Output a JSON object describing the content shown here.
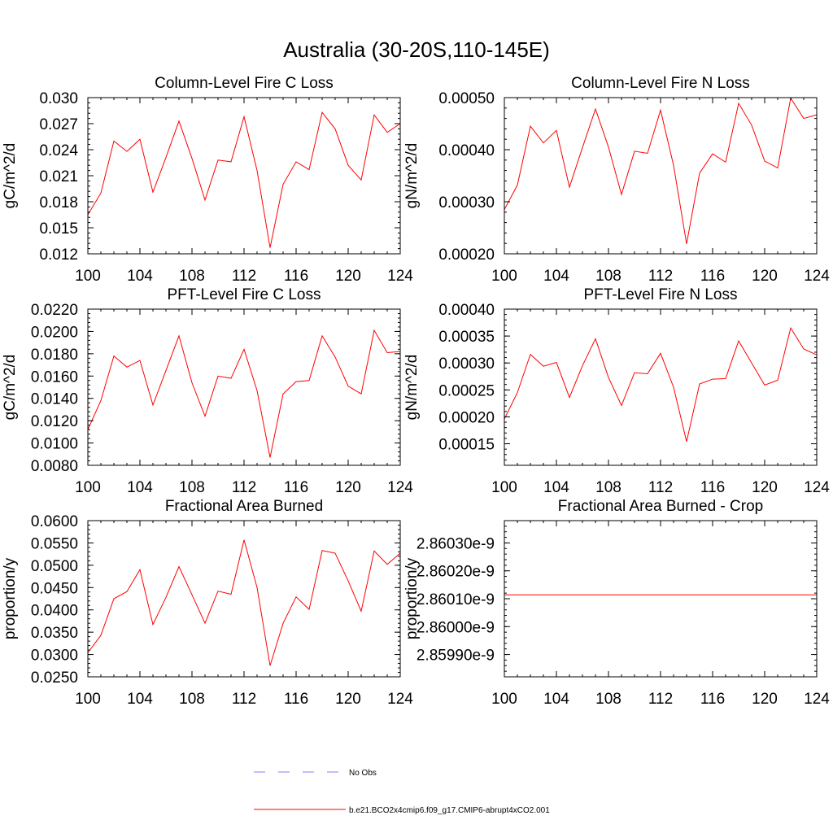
{
  "title": "Australia (30-20S,110-145E)",
  "legend": [
    {
      "label": "No Obs",
      "color": "#8080ff",
      "dash": true
    },
    {
      "label": "b.e21.BCO2x4cmip6.f09_g17.CMIP6-abrupt4xCO2.001",
      "color": "#ff0000",
      "dash": false
    }
  ],
  "chart_data": [
    {
      "type": "line",
      "title": "Column-Level Fire C Loss",
      "ylabel": "gC/m^2/d",
      "xlim": [
        100,
        124
      ],
      "ylim": [
        0.012,
        0.03
      ],
      "x_ticks": [
        "100",
        "104",
        "108",
        "112",
        "116",
        "120",
        "124"
      ],
      "y_ticks": [
        "0.012",
        "0.015",
        "0.018",
        "0.021",
        "0.024",
        "0.027",
        "0.030"
      ],
      "series": [
        {
          "color": "#ff0000",
          "x": [
            100,
            101,
            102,
            103,
            104,
            105,
            106,
            107,
            108,
            109,
            110,
            111,
            112,
            113,
            114,
            115,
            116,
            117,
            118,
            119,
            120,
            121,
            122,
            123,
            124
          ],
          "values": [
            0.0165,
            0.019,
            0.025,
            0.0238,
            0.0252,
            0.0191,
            0.0231,
            0.0273,
            0.023,
            0.0182,
            0.0228,
            0.0226,
            0.0278,
            0.0216,
            0.0127,
            0.02,
            0.0226,
            0.0217,
            0.0283,
            0.0264,
            0.0222,
            0.0205,
            0.028,
            0.026,
            0.027
          ]
        }
      ]
    },
    {
      "type": "line",
      "title": "Column-Level Fire N Loss",
      "ylabel": "gN/m^2/d",
      "xlim": [
        100,
        124
      ],
      "ylim": [
        0.0002,
        0.0005
      ],
      "x_ticks": [
        "100",
        "104",
        "108",
        "112",
        "116",
        "120",
        "124"
      ],
      "y_ticks": [
        "0.00020",
        "0.00030",
        "0.00040",
        "0.00050"
      ],
      "series": [
        {
          "color": "#ff0000",
          "x": [
            100,
            101,
            102,
            103,
            104,
            105,
            106,
            107,
            108,
            109,
            110,
            111,
            112,
            113,
            114,
            115,
            116,
            117,
            118,
            119,
            120,
            121,
            122,
            123,
            124
          ],
          "values": [
            0.000285,
            0.000332,
            0.000445,
            0.000413,
            0.000437,
            0.000328,
            0.000404,
            0.000478,
            0.000405,
            0.000314,
            0.000397,
            0.000393,
            0.000476,
            0.00037,
            0.000219,
            0.000355,
            0.000392,
            0.000376,
            0.000489,
            0.000447,
            0.000378,
            0.000365,
            0.000499,
            0.00046,
            0.000467
          ]
        }
      ]
    },
    {
      "type": "line",
      "title": "PFT-Level Fire C Loss",
      "ylabel": "gC/m^2/d",
      "xlim": [
        100,
        124
      ],
      "ylim": [
        0.008,
        0.022
      ],
      "x_ticks": [
        "100",
        "104",
        "108",
        "112",
        "116",
        "120",
        "124"
      ],
      "y_ticks": [
        "0.0080",
        "0.0100",
        "0.0120",
        "0.0140",
        "0.0160",
        "0.0180",
        "0.0200",
        "0.0220"
      ],
      "series": [
        {
          "color": "#ff0000",
          "x": [
            100,
            101,
            102,
            103,
            104,
            105,
            106,
            107,
            108,
            109,
            110,
            111,
            112,
            113,
            114,
            115,
            116,
            117,
            118,
            119,
            120,
            121,
            122,
            123,
            124
          ],
          "values": [
            0.0112,
            0.0138,
            0.0178,
            0.0168,
            0.0174,
            0.0134,
            0.0165,
            0.0196,
            0.0154,
            0.0124,
            0.016,
            0.0158,
            0.0184,
            0.0147,
            0.0087,
            0.0144,
            0.0155,
            0.0156,
            0.0196,
            0.0177,
            0.0151,
            0.0144,
            0.0201,
            0.0181,
            0.0182
          ]
        }
      ]
    },
    {
      "type": "line",
      "title": "PFT-Level Fire N Loss",
      "ylabel": "gN/m^2/d",
      "xlim": [
        100,
        124
      ],
      "ylim": [
        0.00011,
        0.0004
      ],
      "x_ticks": [
        "100",
        "104",
        "108",
        "112",
        "116",
        "120",
        "124"
      ],
      "y_ticks": [
        "0.00015",
        "0.00020",
        "0.00025",
        "0.00030",
        "0.00035",
        "0.00040"
      ],
      "series": [
        {
          "color": "#ff0000",
          "x": [
            100,
            101,
            102,
            103,
            104,
            105,
            106,
            107,
            108,
            109,
            110,
            111,
            112,
            113,
            114,
            115,
            116,
            117,
            118,
            119,
            120,
            121,
            122,
            123,
            124
          ],
          "values": [
            0.000196,
            0.000245,
            0.000316,
            0.000294,
            0.000301,
            0.000236,
            0.000295,
            0.000345,
            0.000273,
            0.000221,
            0.000282,
            0.00028,
            0.000318,
            0.000255,
            0.000154,
            0.000261,
            0.00027,
            0.000271,
            0.000341,
            0.0003,
            0.000259,
            0.000268,
            0.000365,
            0.000326,
            0.000315
          ]
        }
      ]
    },
    {
      "type": "line",
      "title": "Fractional Area Burned",
      "ylabel": "proportion/y",
      "xlim": [
        100,
        124
      ],
      "ylim": [
        0.025,
        0.06
      ],
      "x_ticks": [
        "100",
        "104",
        "108",
        "112",
        "116",
        "120",
        "124"
      ],
      "y_ticks": [
        "0.0250",
        "0.0300",
        "0.0350",
        "0.0400",
        "0.0450",
        "0.0500",
        "0.0550",
        "0.0600"
      ],
      "series": [
        {
          "color": "#ff0000",
          "x": [
            100,
            101,
            102,
            103,
            104,
            105,
            106,
            107,
            108,
            109,
            110,
            111,
            112,
            113,
            114,
            115,
            116,
            117,
            118,
            119,
            120,
            121,
            122,
            123,
            124
          ],
          "values": [
            0.0304,
            0.0343,
            0.0425,
            0.0441,
            0.049,
            0.0367,
            0.0428,
            0.0497,
            0.0434,
            0.037,
            0.0442,
            0.0435,
            0.0557,
            0.045,
            0.0275,
            0.037,
            0.0429,
            0.0401,
            0.0533,
            0.0527,
            0.0465,
            0.0397,
            0.0532,
            0.0502,
            0.0527
          ]
        }
      ]
    },
    {
      "type": "line",
      "title": "Fractional Area Burned - Crop",
      "ylabel": "proportion/y",
      "xlim": [
        100,
        124
      ],
      "ylim": [
        2.85982e-09,
        2.86038e-09
      ],
      "x_ticks": [
        "100",
        "104",
        "108",
        "112",
        "116",
        "120",
        "124"
      ],
      "y_ticks": [
        "2.85990e-9",
        "2.86000e-9",
        "2.86010e-9",
        "2.86020e-9",
        "2.86030e-9"
      ],
      "series": [
        {
          "color": "#ff0000",
          "x": [
            100,
            124
          ],
          "values": [
            2.860114e-09,
            2.860114e-09
          ]
        }
      ]
    }
  ]
}
